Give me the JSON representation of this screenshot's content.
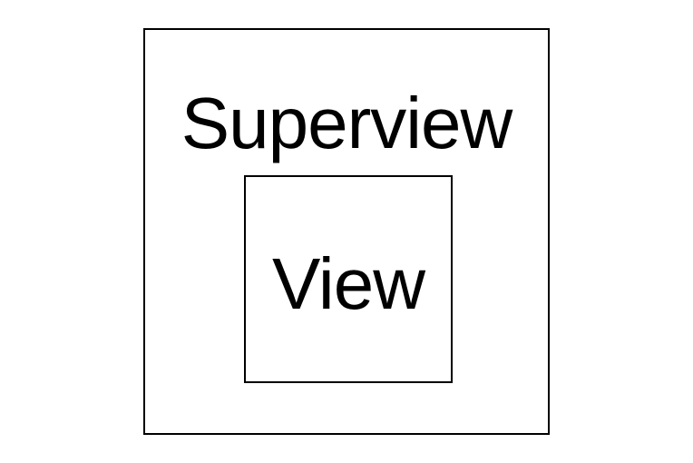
{
  "diagram": {
    "outer": {
      "label": "Superview"
    },
    "inner": {
      "label": "View"
    },
    "colors": {
      "stroke": "#000000",
      "text": "#000000",
      "background": "#ffffff"
    }
  }
}
